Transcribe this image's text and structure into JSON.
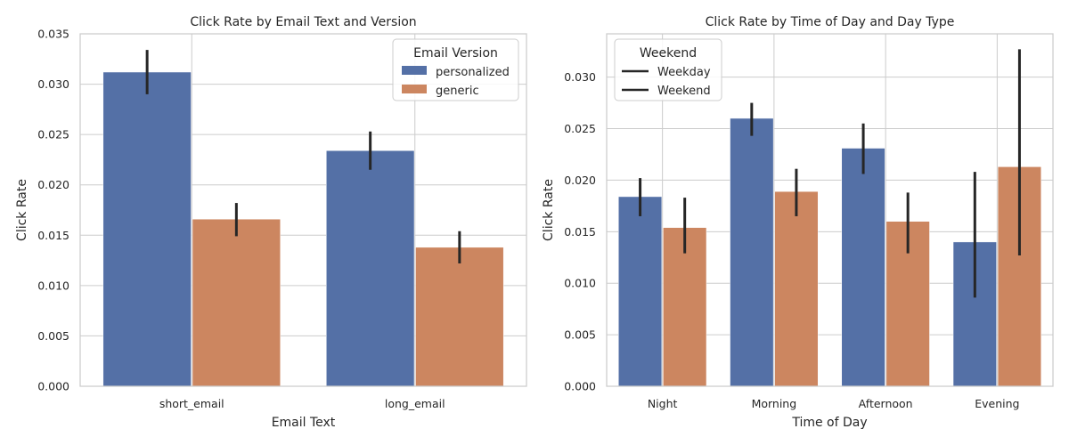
{
  "colors": {
    "series_a": "#5470a6",
    "series_b": "#cc8660",
    "grid": "#cccccc",
    "text": "#262626"
  },
  "chart_data": [
    {
      "type": "bar",
      "title": "Click Rate by Email Text and Version",
      "xlabel": "Email Text",
      "ylabel": "Click Rate",
      "ylim": [
        0,
        0.035
      ],
      "yticks": [
        "0.000",
        "0.005",
        "0.010",
        "0.015",
        "0.020",
        "0.025",
        "0.030",
        "0.035"
      ],
      "categories": [
        "short_email",
        "long_email"
      ],
      "legend": {
        "title": "Email Version",
        "placement": "top-right"
      },
      "grid": true,
      "series": [
        {
          "name": "personalized",
          "values": [
            0.0312,
            0.0234
          ],
          "ci_low": [
            0.029,
            0.0215
          ],
          "ci_high": [
            0.0334,
            0.0253
          ]
        },
        {
          "name": "generic",
          "values": [
            0.0166,
            0.0138
          ],
          "ci_low": [
            0.0149,
            0.0122
          ],
          "ci_high": [
            0.0182,
            0.0154
          ]
        }
      ]
    },
    {
      "type": "bar",
      "title": "Click Rate by Time of Day and Day Type",
      "xlabel": "Time of Day",
      "ylabel": "Click Rate",
      "ylim": [
        0,
        0.0342
      ],
      "yticks": [
        "0.000",
        "0.005",
        "0.010",
        "0.015",
        "0.020",
        "0.025",
        "0.030"
      ],
      "categories": [
        "Night",
        "Morning",
        "Afternoon",
        "Evening"
      ],
      "legend": {
        "title": "Weekend",
        "placement": "top-left"
      },
      "grid": true,
      "series": [
        {
          "name": "Weekday",
          "values": [
            0.0184,
            0.026,
            0.0231,
            0.014
          ],
          "ci_low": [
            0.0165,
            0.0243,
            0.0206,
            0.0086
          ],
          "ci_high": [
            0.0202,
            0.0275,
            0.0255,
            0.0208
          ]
        },
        {
          "name": "Weekend",
          "values": [
            0.0154,
            0.0189,
            0.016,
            0.0213
          ],
          "ci_low": [
            0.0129,
            0.0165,
            0.0129,
            0.0127
          ],
          "ci_high": [
            0.0183,
            0.0211,
            0.0188,
            0.0327
          ]
        }
      ]
    }
  ]
}
